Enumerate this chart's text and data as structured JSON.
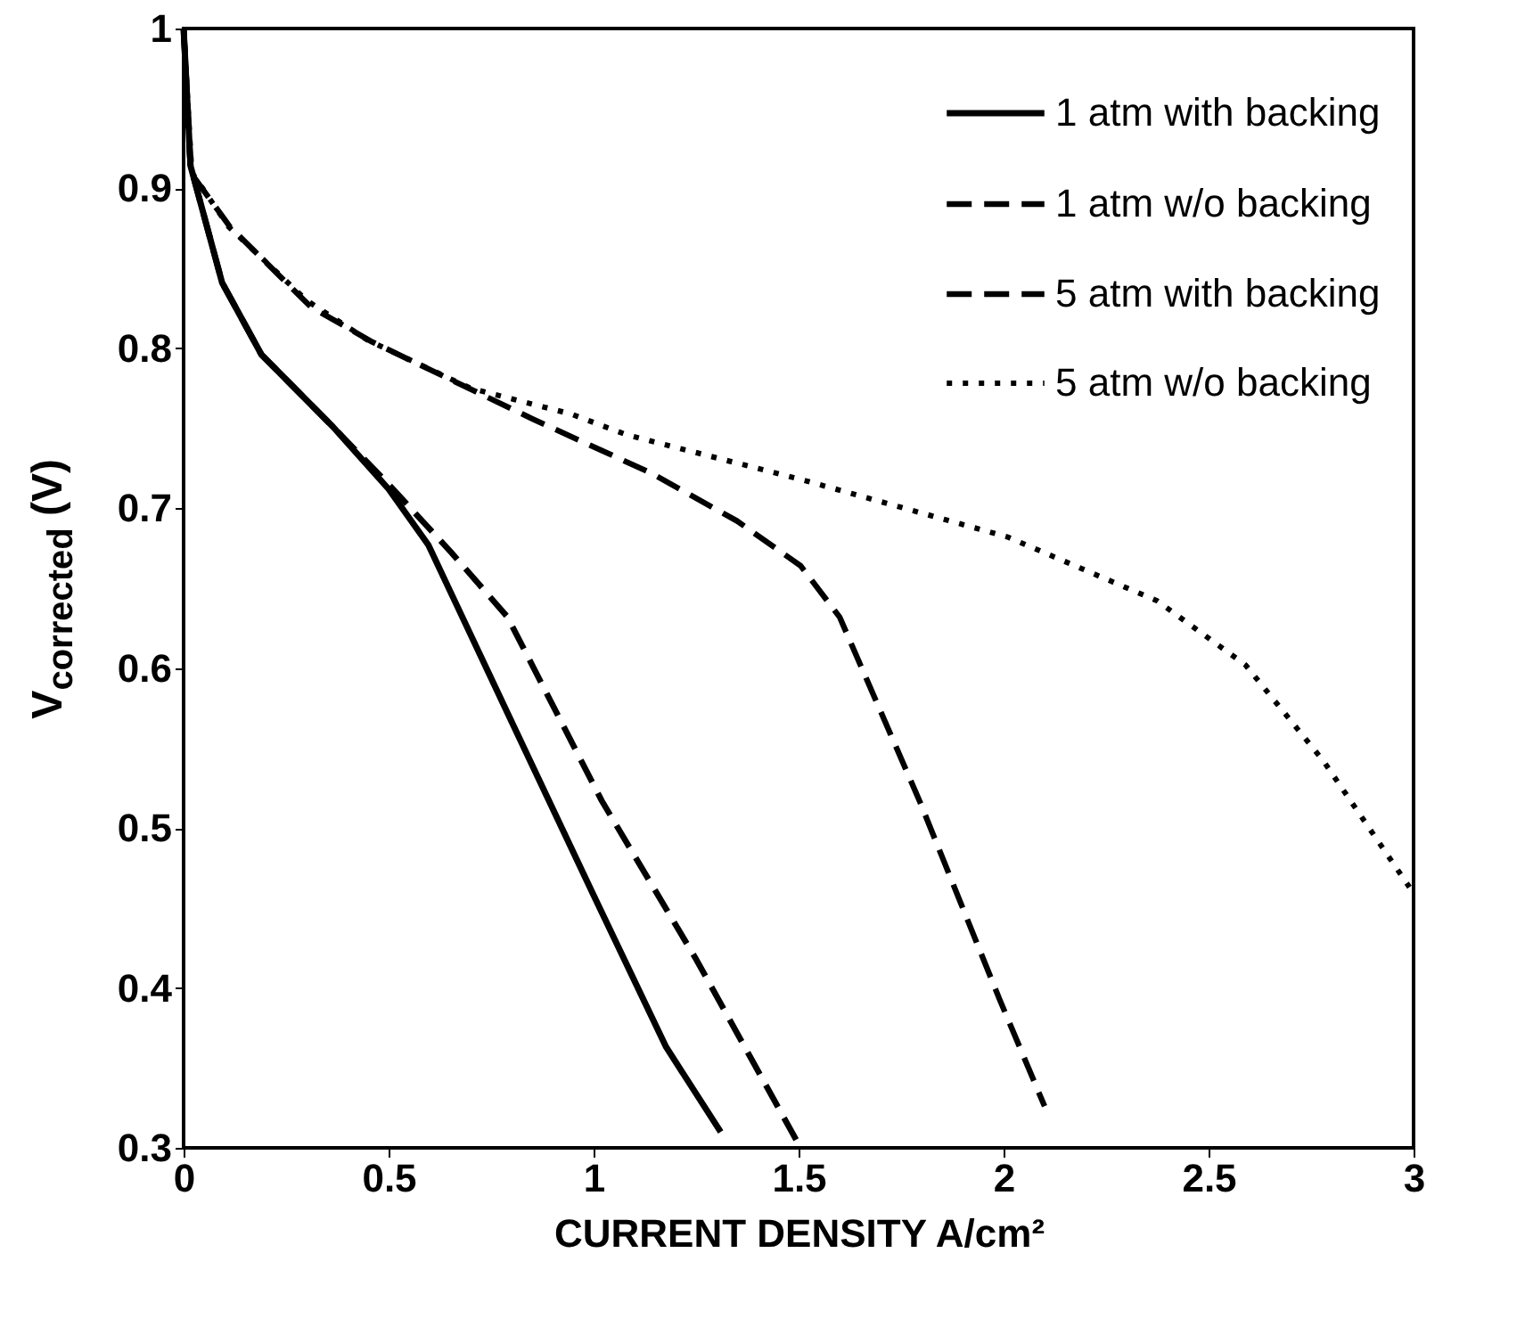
{
  "chart_data": {
    "type": "line",
    "xlabel": "CURRENT DENSITY A/cm²",
    "ylabel": "V$_{corrected}$ (V)",
    "xlim": [
      0,
      3
    ],
    "ylim": [
      0.3,
      1
    ],
    "xticks": [
      0,
      0.5,
      1,
      1.5,
      2,
      2.5,
      3
    ],
    "yticks": [
      0.3,
      0.4,
      0.5,
      0.6,
      0.7,
      0.8,
      0.9,
      1
    ],
    "grid": false,
    "legend": "top right",
    "marker": "none",
    "series": [
      {
        "name": "1 atm with backing",
        "color": "#000000",
        "line_style": "solid",
        "x": [
          0,
          0.017,
          0.094,
          0.19,
          0.364,
          0.5,
          0.597,
          0.79,
          1.0,
          1.177,
          1.31
        ],
        "values": [
          1.0,
          0.914,
          0.841,
          0.796,
          0.751,
          0.712,
          0.677,
          0.572,
          0.458,
          0.363,
          0.31
        ]
      },
      {
        "name": "1 atm w/o backing",
        "color": "#000000",
        "line_style": "dashed",
        "x": [
          0,
          0.017,
          0.094,
          0.19,
          0.364,
          0.5,
          0.654,
          0.79,
          1.02,
          1.25,
          1.505
        ],
        "values": [
          1.0,
          0.914,
          0.841,
          0.796,
          0.751,
          0.715,
          0.672,
          0.632,
          0.517,
          0.418,
          0.3
        ]
      },
      {
        "name": "5 atm with backing",
        "color": "#000000",
        "line_style": "dashed",
        "x": [
          0,
          0.017,
          0.113,
          0.31,
          0.46,
          0.85,
          1.14,
          1.35,
          1.505,
          1.6,
          1.795,
          1.99,
          2.1
        ],
        "values": [
          1.0,
          0.91,
          0.876,
          0.826,
          0.804,
          0.756,
          0.722,
          0.692,
          0.664,
          0.632,
          0.517,
          0.393,
          0.326
        ]
      },
      {
        "name": "5 atm w/o backing",
        "color": "#000000",
        "line_style": "dotted",
        "x": [
          0,
          0.02,
          0.11,
          0.3,
          0.45,
          0.7,
          0.944,
          1.08,
          1.52,
          2.01,
          2.375,
          2.59,
          2.78,
          2.99
        ],
        "values": [
          1.0,
          0.91,
          0.876,
          0.83,
          0.805,
          0.775,
          0.759,
          0.746,
          0.717,
          0.682,
          0.642,
          0.602,
          0.542,
          0.463
        ]
      }
    ]
  }
}
